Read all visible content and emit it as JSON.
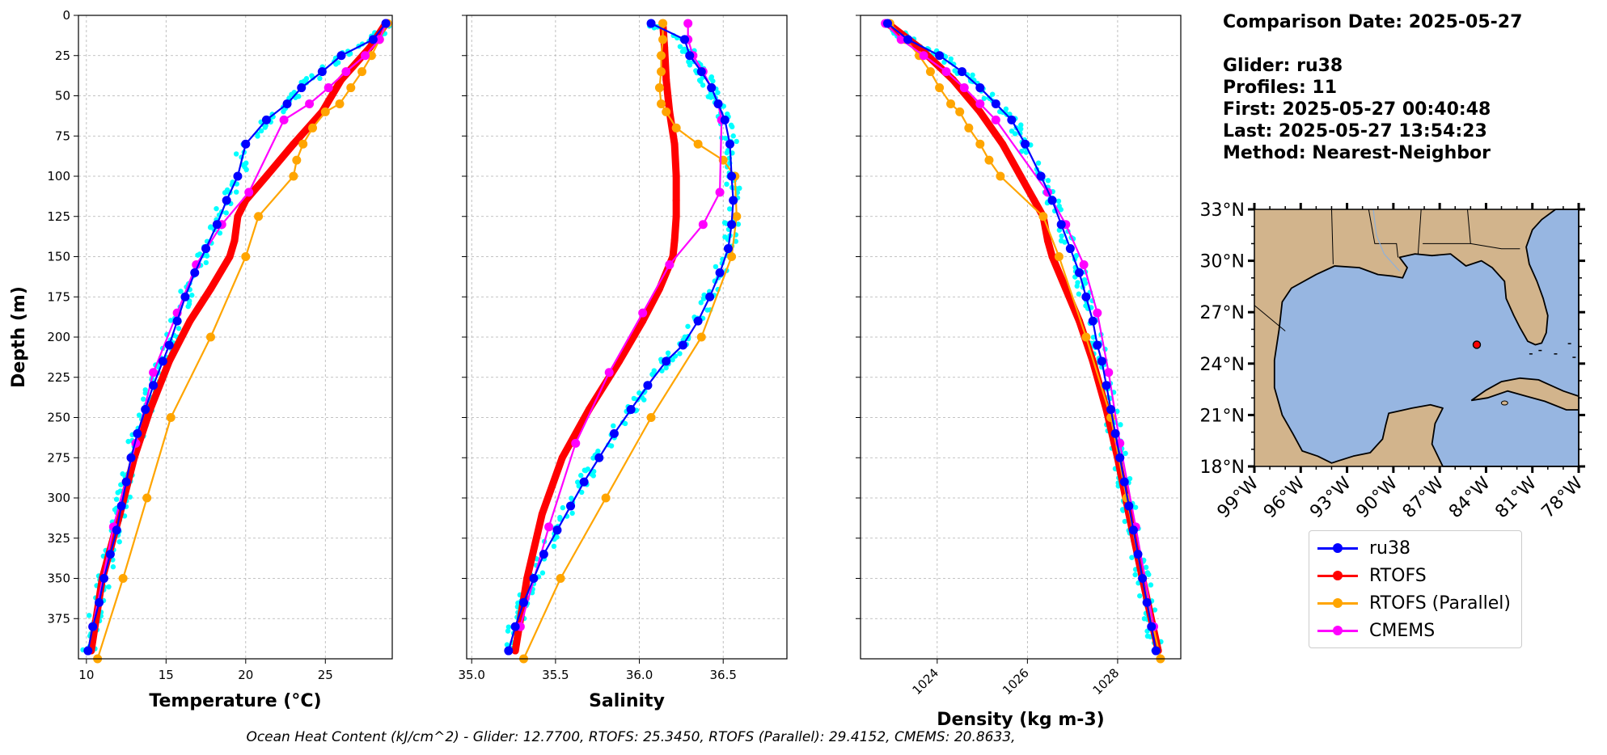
{
  "info": {
    "comparison_date": "Comparison Date: 2025-05-27",
    "glider": "Glider: ru38",
    "profiles": "Profiles: 11",
    "first": "First: 2025-05-27 00:40:48",
    "last": "Last: 2025-05-27 13:54:23",
    "method": "Method: Nearest-Neighbor"
  },
  "footer": "Ocean Heat Content (kJ/cm^2) - Glider: 12.7700,  RTOFS: 25.3450,  RTOFS (Parallel): 29.4152,  CMEMS: 20.8633,",
  "legend": [
    {
      "label": "ru38",
      "color": "#0000ff"
    },
    {
      "label": "RTOFS",
      "color": "#ff0000"
    },
    {
      "label": "RTOFS (Parallel)",
      "color": "#ffa500"
    },
    {
      "label": "CMEMS",
      "color": "#ff00ff"
    }
  ],
  "chart_data": [
    {
      "type": "line",
      "xlabel": "Temperature (°C)",
      "ylabel": "Depth (m)",
      "xlim": [
        9.5,
        29.2
      ],
      "ylim": [
        400,
        0
      ],
      "xticks": [
        10,
        15,
        20,
        25
      ],
      "yticks": [
        0,
        25,
        50,
        75,
        100,
        125,
        150,
        175,
        200,
        225,
        250,
        275,
        300,
        325,
        350,
        375
      ],
      "grid": true,
      "series": [
        {
          "name": "ru38",
          "color": "#0000ff",
          "x": [
            28.8,
            28.0,
            26.0,
            24.8,
            23.5,
            22.6,
            21.3,
            20.0,
            19.5,
            18.8,
            18.2,
            17.5,
            16.8,
            16.2,
            15.7,
            15.2,
            14.8,
            14.2,
            13.7,
            13.2,
            12.8,
            12.5,
            12.2,
            11.9,
            11.5,
            11.1,
            10.8,
            10.4,
            10.1
          ],
          "y": [
            5,
            15,
            25,
            35,
            45,
            55,
            65,
            80,
            100,
            115,
            130,
            145,
            160,
            175,
            190,
            205,
            215,
            230,
            245,
            260,
            275,
            290,
            305,
            320,
            335,
            350,
            365,
            380,
            395
          ]
        },
        {
          "name": "RTOFS",
          "color": "#ff0000",
          "x": [
            28.8,
            27.8,
            26.0,
            24.8,
            23.0,
            21.3,
            20.0,
            19.5,
            19.3,
            19.0,
            17.8,
            16.5,
            15.2,
            14.0,
            13.0,
            12.1,
            11.0,
            10.3
          ],
          "y": [
            5,
            20,
            40,
            60,
            80,
            100,
            115,
            125,
            140,
            150,
            170,
            190,
            215,
            245,
            275,
            310,
            350,
            395
          ]
        },
        {
          "name": "RTOFS (Parallel)",
          "color": "#ffa500",
          "x": [
            28.9,
            28.4,
            27.9,
            27.3,
            26.6,
            25.9,
            25.0,
            24.2,
            23.6,
            23.2,
            23.0,
            20.8,
            20.0,
            17.8,
            15.3,
            13.8,
            12.3,
            10.7
          ],
          "y": [
            5,
            15,
            25,
            35,
            45,
            55,
            60,
            70,
            80,
            90,
            100,
            125,
            150,
            200,
            250,
            300,
            350,
            400
          ]
        },
        {
          "name": "CMEMS",
          "color": "#ff00ff",
          "x": [
            28.8,
            28.4,
            27.5,
            26.3,
            25.2,
            24.0,
            22.4,
            20.2,
            18.5,
            16.9,
            15.7,
            14.2,
            13.1,
            11.7,
            10.4
          ],
          "y": [
            5,
            15,
            25,
            35,
            45,
            55,
            65,
            110,
            130,
            155,
            185,
            222,
            266,
            318,
            380
          ]
        }
      ],
      "glider_scatter_color": "#00ffff"
    },
    {
      "type": "line",
      "xlabel": "Salinity",
      "xlim": [
        34.97,
        36.88
      ],
      "ylim": [
        400,
        0
      ],
      "xticks": [
        35.0,
        35.5,
        36.0,
        36.5
      ],
      "grid": true,
      "series": [
        {
          "name": "ru38",
          "color": "#0000ff",
          "x": [
            36.07,
            36.27,
            36.3,
            36.37,
            36.43,
            36.47,
            36.51,
            36.54,
            36.55,
            36.56,
            36.55,
            36.53,
            36.48,
            36.42,
            36.35,
            36.26,
            36.16,
            36.05,
            35.95,
            35.85,
            35.76,
            35.67,
            35.59,
            35.51,
            35.43,
            35.37,
            35.31,
            35.26,
            35.22
          ],
          "y": [
            5,
            15,
            25,
            35,
            45,
            55,
            65,
            80,
            100,
            115,
            130,
            145,
            160,
            175,
            190,
            205,
            215,
            230,
            245,
            260,
            275,
            290,
            305,
            320,
            335,
            350,
            365,
            380,
            395
          ]
        },
        {
          "name": "RTOFS",
          "color": "#ff0000",
          "x": [
            36.14,
            36.15,
            36.16,
            36.18,
            36.21,
            36.22,
            36.22,
            36.22,
            36.21,
            36.2,
            36.12,
            36.02,
            35.88,
            35.7,
            35.54,
            35.42,
            35.33,
            35.26
          ],
          "y": [
            5,
            20,
            40,
            60,
            80,
            100,
            115,
            125,
            140,
            150,
            170,
            190,
            215,
            245,
            275,
            310,
            350,
            395
          ]
        },
        {
          "name": "RTOFS (Parallel)",
          "color": "#ffa500",
          "x": [
            36.14,
            36.14,
            36.13,
            36.13,
            36.12,
            36.13,
            36.16,
            36.22,
            36.35,
            36.5,
            36.57,
            36.58,
            36.55,
            36.37,
            36.07,
            35.8,
            35.53,
            35.31
          ],
          "y": [
            5,
            15,
            25,
            35,
            45,
            55,
            60,
            70,
            80,
            90,
            100,
            125,
            150,
            200,
            250,
            300,
            350,
            400
          ]
        },
        {
          "name": "CMEMS",
          "color": "#ff00ff",
          "x": [
            36.29,
            36.29,
            36.32,
            36.38,
            36.43,
            36.47,
            36.49,
            36.48,
            36.38,
            36.18,
            36.02,
            35.82,
            35.62,
            35.46,
            35.29
          ],
          "y": [
            5,
            15,
            25,
            35,
            45,
            55,
            65,
            110,
            130,
            155,
            185,
            222,
            266,
            318,
            380
          ]
        }
      ],
      "glider_scatter_color": "#00ffff"
    },
    {
      "type": "line",
      "xlabel": "Density (kg m-3)",
      "xlim": [
        1022.3,
        1029.4
      ],
      "ylim": [
        400,
        0
      ],
      "xticks": [
        1024,
        1026,
        1028
      ],
      "grid": true,
      "series": [
        {
          "name": "ru38",
          "color": "#0000ff",
          "x": [
            1022.9,
            1023.35,
            1024.05,
            1024.55,
            1024.95,
            1025.3,
            1025.65,
            1025.95,
            1026.3,
            1026.55,
            1026.75,
            1026.95,
            1027.15,
            1027.3,
            1027.45,
            1027.55,
            1027.65,
            1027.75,
            1027.85,
            1027.95,
            1028.05,
            1028.15,
            1028.25,
            1028.35,
            1028.45,
            1028.55,
            1028.65,
            1028.75,
            1028.85
          ],
          "y": [
            5,
            15,
            25,
            35,
            45,
            55,
            65,
            80,
            100,
            115,
            130,
            145,
            160,
            175,
            190,
            205,
            215,
            230,
            245,
            260,
            275,
            290,
            305,
            320,
            335,
            350,
            365,
            380,
            395
          ]
        },
        {
          "name": "RTOFS",
          "color": "#ff0000",
          "x": [
            1022.9,
            1023.6,
            1024.35,
            1024.95,
            1025.45,
            1025.85,
            1026.15,
            1026.35,
            1026.45,
            1026.55,
            1026.85,
            1027.15,
            1027.45,
            1027.75,
            1028.0,
            1028.25,
            1028.55,
            1028.9
          ],
          "y": [
            5,
            20,
            40,
            60,
            80,
            100,
            115,
            125,
            140,
            150,
            170,
            190,
            215,
            245,
            275,
            310,
            350,
            395
          ]
        },
        {
          "name": "RTOFS (Parallel)",
          "color": "#ffa500",
          "x": [
            1022.95,
            1023.3,
            1023.6,
            1023.85,
            1024.05,
            1024.3,
            1024.5,
            1024.7,
            1024.95,
            1025.15,
            1025.4,
            1026.35,
            1026.7,
            1027.3,
            1027.85,
            1028.2,
            1028.55,
            1028.95
          ],
          "y": [
            5,
            15,
            25,
            35,
            45,
            55,
            60,
            70,
            80,
            90,
            100,
            125,
            150,
            200,
            250,
            300,
            350,
            400
          ]
        },
        {
          "name": "CMEMS",
          "color": "#ff00ff",
          "x": [
            1022.85,
            1023.2,
            1023.7,
            1024.2,
            1024.6,
            1024.95,
            1025.3,
            1026.45,
            1026.85,
            1027.25,
            1027.55,
            1027.8,
            1028.05,
            1028.4,
            1028.8
          ],
          "y": [
            5,
            15,
            25,
            35,
            45,
            55,
            65,
            110,
            130,
            155,
            185,
            222,
            266,
            318,
            380
          ]
        }
      ],
      "glider_scatter_color": "#00ffff"
    },
    {
      "type": "map",
      "lon_range": [
        -99,
        -78
      ],
      "lat_range": [
        18,
        33
      ],
      "lon_ticks": [
        "99°W",
        "96°W",
        "93°W",
        "90°W",
        "87°W",
        "84°W",
        "81°W",
        "78°W"
      ],
      "lat_ticks": [
        "33°N",
        "30°N",
        "27°N",
        "24°N",
        "21°N",
        "18°N"
      ],
      "land_color": "#d2b48c",
      "ocean_color": "#97b6e1",
      "glider_position": {
        "lon": -84.6,
        "lat": 25.1,
        "color": "#ff0000"
      }
    }
  ]
}
